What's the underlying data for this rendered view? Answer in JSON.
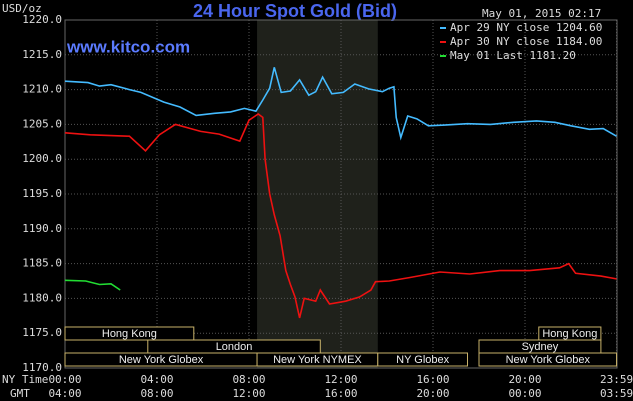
{
  "chart_data": {
    "type": "line",
    "title": "24 Hour Spot Gold (Bid)",
    "unit_label": "USD/oz",
    "timestamp": "May 01, 2015 02:17",
    "site": "www.kitco.com",
    "x_axis_label": "NY Time",
    "x2_axis_label": "GMT",
    "xlim": [
      0,
      24
    ],
    "ylim": [
      1170,
      1220
    ],
    "xticks": [
      {
        "value": 0,
        "label": "00:00"
      },
      {
        "value": 4,
        "label": "04:00"
      },
      {
        "value": 8,
        "label": "08:00"
      },
      {
        "value": 12,
        "label": "12:00"
      },
      {
        "value": 16,
        "label": "16:00"
      },
      {
        "value": 20,
        "label": "20:00"
      },
      {
        "value": 23.98,
        "label": "23:59"
      }
    ],
    "x2ticks": [
      "04:00",
      "08:00",
      "12:00",
      "16:00",
      "20:00",
      "00:00",
      "03:59"
    ],
    "yticks": [
      {
        "value": 1170,
        "label": "1170.0"
      },
      {
        "value": 1175,
        "label": "1175.0"
      },
      {
        "value": 1180,
        "label": "1180.0"
      },
      {
        "value": 1185,
        "label": "1185.0"
      },
      {
        "value": 1190,
        "label": "1190.0"
      },
      {
        "value": 1195,
        "label": "1195.0"
      },
      {
        "value": 1200,
        "label": "1200.0"
      },
      {
        "value": 1205,
        "label": "1205.0"
      },
      {
        "value": 1210,
        "label": "1210.0"
      },
      {
        "value": 1215,
        "label": "1215.0"
      },
      {
        "value": 1220,
        "label": "1220.0"
      }
    ],
    "grid": true,
    "series": [
      {
        "name": "Apr 29 NY close 1204.60",
        "color": "#44bbff",
        "x": [
          0,
          1,
          1.5,
          2,
          2.8,
          3.3,
          4.3,
          5,
          5.7,
          6.5,
          7.2,
          7.8,
          8.3,
          8.6,
          8.9,
          9.1,
          9.4,
          9.8,
          10.2,
          10.6,
          10.9,
          11.2,
          11.6,
          12.1,
          12.6,
          13.2,
          13.8,
          14.1,
          14.3,
          14.4,
          14.6,
          14.9,
          15.3,
          15.8,
          16.5,
          17.5,
          18.5,
          19.5,
          20.5,
          21.3,
          22,
          22.8,
          23.4,
          23.98
        ],
        "values": [
          1211.2,
          1211,
          1210.5,
          1210.7,
          1210,
          1209.6,
          1208.2,
          1207.5,
          1206.3,
          1206.6,
          1206.8,
          1207.3,
          1206.9,
          1208.5,
          1210.2,
          1213.2,
          1209.6,
          1209.8,
          1211.4,
          1209.2,
          1209.7,
          1211.8,
          1209.4,
          1209.6,
          1210.8,
          1210.1,
          1209.7,
          1210.2,
          1210.4,
          1206,
          1203.1,
          1206.2,
          1205.8,
          1204.8,
          1204.9,
          1205.1,
          1205,
          1205.3,
          1205.5,
          1205.3,
          1204.8,
          1204.3,
          1204.4,
          1203.3
        ]
      },
      {
        "name": "Apr 30 NY close 1184.00",
        "color": "#ee1111",
        "x": [
          0,
          1.1,
          2.8,
          3.5,
          4.1,
          4.8,
          5.9,
          6.7,
          7.6,
          8,
          8.4,
          8.6,
          8.7,
          8.9,
          9.1,
          9.35,
          9.6,
          9.8,
          10,
          10.2,
          10.4,
          10.9,
          11.1,
          11.5,
          12.2,
          12.8,
          13.3,
          13.5,
          14.1,
          15,
          16.3,
          17.6,
          18.9,
          20.2,
          21.5,
          21.9,
          22.2,
          23.3,
          23.98
        ],
        "values": [
          1203.8,
          1203.5,
          1203.3,
          1201.2,
          1203.5,
          1205,
          1204,
          1203.6,
          1202.6,
          1205.6,
          1206.5,
          1206,
          1200,
          1195,
          1192,
          1189,
          1184,
          1182,
          1180.2,
          1177.2,
          1180,
          1179.6,
          1181.2,
          1179.2,
          1179.6,
          1180.2,
          1181.2,
          1182.4,
          1182.5,
          1183,
          1183.8,
          1183.5,
          1184,
          1184,
          1184.4,
          1185,
          1183.6,
          1183.2,
          1182.8
        ]
      },
      {
        "name": "May 01 Last 1181.20",
        "color": "#22dd33",
        "x": [
          0,
          0.9,
          1.5,
          2,
          2.4
        ],
        "values": [
          1182.6,
          1182.5,
          1182,
          1182.1,
          1181.2
        ]
      }
    ],
    "sessions": [
      [
        {
          "label": "Hong Kong",
          "start": 0,
          "end": 5.6
        },
        {
          "label": "Hong Kong",
          "start": 20.6,
          "end": 23.3
        }
      ],
      [
        {
          "label": "London",
          "start": 3.6,
          "end": 11.1
        },
        {
          "label": "Sydney",
          "start": 18,
          "end": 23.3
        }
      ],
      [
        {
          "label": "New York Globex",
          "start": 0,
          "end": 8.35
        },
        {
          "label": "New York NYMEX",
          "start": 8.35,
          "end": 13.6
        },
        {
          "label": "NY Globex",
          "start": 13.6,
          "end": 17.5
        },
        {
          "label": "New York Globex",
          "start": 18,
          "end": 23.98
        }
      ]
    ]
  }
}
